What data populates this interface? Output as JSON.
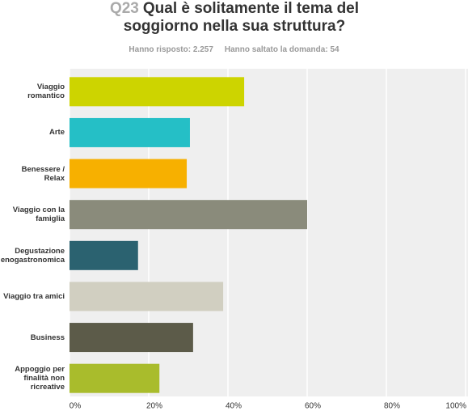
{
  "chart_data": {
    "type": "barh",
    "question_number": "Q23",
    "title": "Qual è solitamente il tema del soggiorno nella sua struttura?",
    "answered": "Hanno risposto: 2.257",
    "skipped": "Hanno saltato la domanda: 54",
    "categories": [
      "Viaggio romantico",
      "Arte",
      "Benessere / Relax",
      "Viaggio con la famiglia",
      "Degustazione enogastronomica",
      "Viaggio tra amici",
      "Business",
      "Appoggio per finalità non ricreative"
    ],
    "values": [
      44.1,
      30.4,
      29.6,
      60.0,
      17.3,
      38.8,
      31.2,
      22.7
    ],
    "colors": [
      "#cdd400",
      "#25bfc6",
      "#f7b000",
      "#8a8b7b",
      "#2b6270",
      "#d1cfc1",
      "#5c5b49",
      "#a9bc2c"
    ],
    "xlim": [
      0,
      100
    ],
    "xticks": [
      {
        "value": 0,
        "label": "0%"
      },
      {
        "value": 20,
        "label": "20%"
      },
      {
        "value": 40,
        "label": "40%"
      },
      {
        "value": 60,
        "label": "60%"
      },
      {
        "value": 80,
        "label": "80%"
      },
      {
        "value": 100,
        "label": "100%"
      }
    ],
    "grid": true
  }
}
